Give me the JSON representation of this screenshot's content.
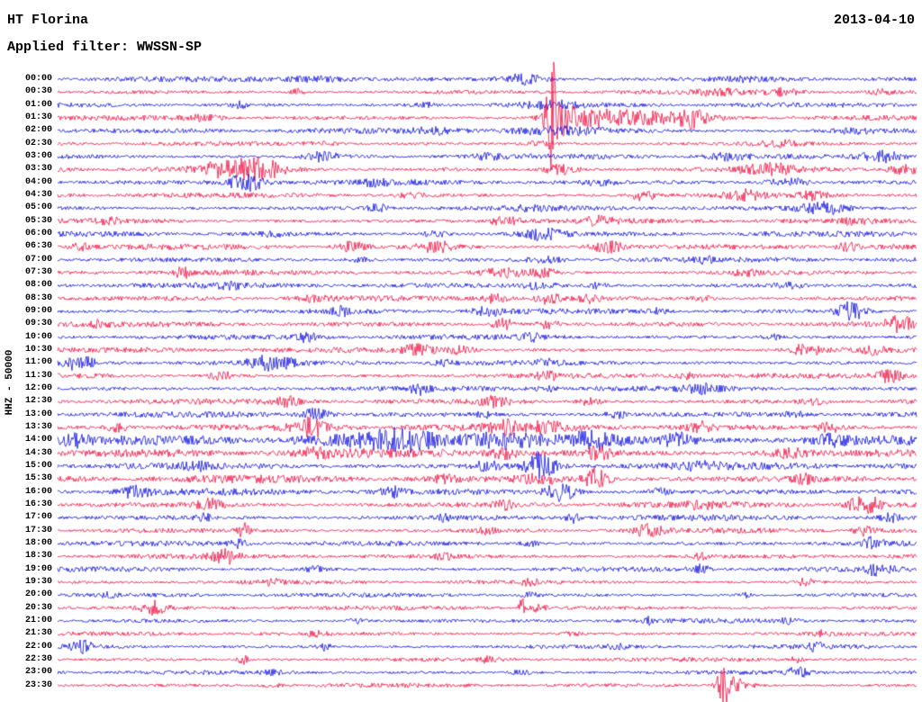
{
  "header": {
    "station": "HT Florina",
    "date": "2013-04-10",
    "filter": "Applied filter: WWSSN-SP"
  },
  "axis": {
    "label": "HHZ - 50000"
  },
  "chart_data": {
    "type": "line",
    "subtype": "helicorder-seismogram",
    "station": "HT Florina",
    "channel": "HHZ",
    "scale": 50000,
    "date": "2013-04-10",
    "filter": "WWSSN-SP",
    "row_interval_minutes": 30,
    "trace_color_cycle": [
      "blue",
      "red"
    ],
    "colors": {
      "b": "#0000e0",
      "r": "#f20038"
    },
    "notable_events": [
      {
        "time": "01:30",
        "pos": 0.574,
        "description": "large red spike with coda"
      },
      {
        "time": "20:30",
        "pos": 0.541,
        "description": "narrow tall spike"
      },
      {
        "time": "23:30",
        "pos": 0.775,
        "description": "large spike at bottom"
      }
    ],
    "rows": [
      {
        "t": "00:00",
        "c": "b",
        "n": 1.8,
        "b": [
          [
            0.545,
            6,
            25
          ],
          [
            0.3,
            2.5,
            40
          ],
          [
            0.8,
            2,
            30
          ]
        ]
      },
      {
        "t": "00:30",
        "c": "r",
        "n": 1.6,
        "b": [
          [
            0.279,
            6,
            6
          ],
          [
            0.77,
            3,
            25
          ],
          [
            0.845,
            3.5,
            20
          ],
          [
            0.96,
            2.5,
            15
          ]
        ]
      },
      {
        "t": "01:00",
        "c": "b",
        "n": 1.7,
        "b": [
          [
            0.211,
            4,
            8
          ],
          [
            0.574,
            4,
            30
          ],
          [
            0.43,
            2.5,
            20
          ]
        ]
      },
      {
        "t": "01:30",
        "c": "r",
        "n": 1.7,
        "b": [
          [
            0.574,
            45,
            5,
            1.9
          ],
          [
            0.585,
            16,
            16
          ],
          [
            0.625,
            8,
            45
          ],
          [
            0.7,
            5,
            60
          ],
          [
            0.74,
            8,
            14
          ],
          [
            0.17,
            3,
            20
          ]
        ]
      },
      {
        "t": "02:00",
        "c": "b",
        "n": 1.9,
        "b": [
          [
            0.58,
            4,
            60
          ],
          [
            0.44,
            3,
            20
          ],
          [
            0.93,
            2.5,
            25
          ]
        ]
      },
      {
        "t": "02:30",
        "c": "r",
        "n": 1.5,
        "b": [
          [
            0.84,
            3,
            20
          ],
          [
            0.56,
            2.5,
            20
          ],
          [
            0.31,
            2,
            15
          ]
        ]
      },
      {
        "t": "03:00",
        "c": "b",
        "n": 1.9,
        "b": [
          [
            0.31,
            5.5,
            18
          ],
          [
            0.96,
            6,
            22
          ],
          [
            0.78,
            3,
            20
          ],
          [
            0.5,
            2.5,
            15
          ]
        ]
      },
      {
        "t": "03:30",
        "c": "r",
        "n": 2.0,
        "b": [
          [
            0.205,
            9,
            35
          ],
          [
            0.242,
            7,
            20
          ],
          [
            0.585,
            5,
            18
          ],
          [
            0.829,
            5.5,
            28
          ],
          [
            0.985,
            5,
            15
          ]
        ]
      },
      {
        "t": "04:00",
        "c": "b",
        "n": 1.9,
        "b": [
          [
            0.221,
            9,
            22
          ],
          [
            0.37,
            3,
            15
          ],
          [
            0.85,
            5,
            22
          ],
          [
            0.63,
            2.5,
            15
          ]
        ]
      },
      {
        "t": "04:30",
        "c": "r",
        "n": 1.8,
        "b": [
          [
            0.682,
            6,
            14
          ],
          [
            0.8,
            5,
            20
          ],
          [
            0.41,
            3,
            15
          ],
          [
            0.88,
            4,
            15
          ]
        ]
      },
      {
        "t": "05:00",
        "c": "b",
        "n": 1.8,
        "b": [
          [
            0.373,
            4,
            12
          ],
          [
            0.892,
            6,
            25
          ],
          [
            0.55,
            2.5,
            15
          ]
        ]
      },
      {
        "t": "05:30",
        "c": "r",
        "n": 1.9,
        "b": [
          [
            0.63,
            5,
            15
          ],
          [
            0.52,
            4,
            20
          ],
          [
            0.93,
            3,
            15
          ],
          [
            0.06,
            3,
            12
          ]
        ]
      },
      {
        "t": "06:00",
        "c": "b",
        "n": 1.9,
        "b": [
          [
            0.562,
            6,
            25
          ],
          [
            0.44,
            3,
            15
          ],
          [
            0.25,
            2.5,
            15
          ]
        ]
      },
      {
        "t": "06:30",
        "c": "r",
        "n": 2.0,
        "b": [
          [
            0.025,
            4,
            12
          ],
          [
            0.342,
            5,
            15
          ],
          [
            0.441,
            6,
            20
          ],
          [
            0.64,
            6,
            18
          ],
          [
            0.92,
            4,
            15
          ]
        ]
      },
      {
        "t": "07:00",
        "c": "b",
        "n": 1.8,
        "b": [
          [
            0.57,
            3,
            20
          ],
          [
            0.35,
            2.5,
            15
          ],
          [
            0.75,
            2.5,
            15
          ]
        ]
      },
      {
        "t": "07:30",
        "c": "r",
        "n": 1.8,
        "b": [
          [
            0.146,
            6,
            8
          ],
          [
            0.52,
            5,
            22
          ],
          [
            0.565,
            5,
            15
          ],
          [
            0.8,
            3,
            15
          ]
        ]
      },
      {
        "t": "08:00",
        "c": "b",
        "n": 1.9,
        "b": [
          [
            0.562,
            4,
            18
          ],
          [
            0.63,
            3,
            12
          ],
          [
            0.2,
            2.5,
            15
          ],
          [
            0.85,
            2.5,
            15
          ]
        ]
      },
      {
        "t": "08:30",
        "c": "r",
        "n": 1.9,
        "b": [
          [
            0.51,
            5,
            14
          ],
          [
            0.572,
            6,
            14
          ],
          [
            0.619,
            5,
            12
          ],
          [
            0.75,
            3,
            12
          ],
          [
            0.3,
            3,
            12
          ]
        ]
      },
      {
        "t": "09:00",
        "c": "b",
        "n": 1.9,
        "b": [
          [
            0.331,
            4,
            12
          ],
          [
            0.5,
            5,
            14
          ],
          [
            0.923,
            10,
            16
          ],
          [
            0.7,
            3,
            12
          ]
        ]
      },
      {
        "t": "09:30",
        "c": "r",
        "n": 1.9,
        "b": [
          [
            0.52,
            6,
            14
          ],
          [
            0.572,
            5,
            12
          ],
          [
            0.981,
            8,
            16
          ],
          [
            0.05,
            3,
            10
          ]
        ]
      },
      {
        "t": "10:00",
        "c": "b",
        "n": 1.9,
        "b": [
          [
            0.289,
            4,
            12
          ],
          [
            0.55,
            4,
            12
          ],
          [
            0.83,
            3,
            12
          ]
        ]
      },
      {
        "t": "10:30",
        "c": "r",
        "n": 1.9,
        "b": [
          [
            0.42,
            6,
            18
          ],
          [
            0.47,
            5,
            14
          ],
          [
            0.871,
            6,
            16
          ],
          [
            0.95,
            4,
            12
          ]
        ]
      },
      {
        "t": "11:00",
        "c": "b",
        "n": 1.9,
        "b": [
          [
            0.025,
            8,
            18
          ],
          [
            0.247,
            7,
            25
          ],
          [
            0.57,
            3,
            15
          ],
          [
            0.45,
            2.5,
            12
          ]
        ]
      },
      {
        "t": "11:30",
        "c": "r",
        "n": 1.9,
        "b": [
          [
            0.19,
            5,
            12
          ],
          [
            0.57,
            4,
            12
          ],
          [
            0.73,
            4,
            12
          ],
          [
            0.971,
            7,
            16
          ]
        ]
      },
      {
        "t": "12:00",
        "c": "b",
        "n": 2.0,
        "b": [
          [
            0.42,
            5,
            10
          ],
          [
            0.75,
            4,
            18
          ],
          [
            0.57,
            3,
            12
          ]
        ]
      },
      {
        "t": "12:30",
        "c": "r",
        "n": 2.0,
        "b": [
          [
            0.268,
            5,
            12
          ],
          [
            0.51,
            5,
            18
          ],
          [
            0.62,
            4,
            12
          ],
          [
            0.88,
            3,
            12
          ]
        ]
      },
      {
        "t": "13:00",
        "c": "b",
        "n": 2.1,
        "b": [
          [
            0.3,
            6,
            16
          ],
          [
            0.65,
            4,
            12
          ],
          [
            0.5,
            3,
            12
          ],
          [
            0.86,
            3,
            12
          ]
        ]
      },
      {
        "t": "13:30",
        "c": "r",
        "n": 2.8,
        "b": [
          [
            0.295,
            9,
            18
          ],
          [
            0.52,
            6,
            14
          ],
          [
            0.57,
            6,
            14
          ],
          [
            0.75,
            5,
            14
          ],
          [
            0.9,
            5,
            14
          ],
          [
            0.07,
            4,
            12
          ]
        ]
      },
      {
        "t": "14:00",
        "c": "b",
        "n": 4.5,
        "b": [
          [
            0.02,
            6,
            14
          ],
          [
            0.4,
            8,
            40
          ],
          [
            0.52,
            8,
            40
          ],
          [
            0.62,
            7,
            30
          ],
          [
            0.72,
            7,
            16
          ],
          [
            0.9,
            5,
            20
          ]
        ]
      },
      {
        "t": "14:30",
        "c": "r",
        "n": 3.2,
        "b": [
          [
            0.52,
            6,
            16
          ],
          [
            0.63,
            6,
            14
          ],
          [
            0.85,
            6,
            22
          ],
          [
            0.3,
            4,
            14
          ]
        ]
      },
      {
        "t": "15:00",
        "c": "b",
        "n": 2.8,
        "b": [
          [
            0.562,
            14,
            16
          ],
          [
            0.5,
            5,
            14
          ],
          [
            0.75,
            4,
            14
          ],
          [
            0.16,
            4,
            12
          ]
        ]
      },
      {
        "t": "15:30",
        "c": "r",
        "n": 2.8,
        "b": [
          [
            0.628,
            12,
            14
          ],
          [
            0.56,
            6,
            22
          ],
          [
            0.45,
            4,
            12
          ],
          [
            0.87,
            4,
            12
          ]
        ]
      },
      {
        "t": "16:00",
        "c": "b",
        "n": 2.4,
        "b": [
          [
            0.09,
            6,
            16
          ],
          [
            0.389,
            5,
            12
          ],
          [
            0.585,
            11,
            16
          ],
          [
            0.7,
            4,
            12
          ]
        ]
      },
      {
        "t": "16:30",
        "c": "r",
        "n": 2.2,
        "b": [
          [
            0.179,
            6,
            16
          ],
          [
            0.52,
            4,
            12
          ],
          [
            0.939,
            13,
            16
          ],
          [
            0.75,
            4,
            12
          ]
        ]
      },
      {
        "t": "17:00",
        "c": "b",
        "n": 2.0,
        "b": [
          [
            0.599,
            8,
            8
          ],
          [
            0.17,
            4,
            10
          ],
          [
            0.45,
            3,
            10
          ],
          [
            0.97,
            4,
            10
          ]
        ]
      },
      {
        "t": "17:30",
        "c": "r",
        "n": 1.9,
        "b": [
          [
            0.216,
            8,
            8
          ],
          [
            0.688,
            7,
            14
          ],
          [
            0.94,
            5,
            12
          ],
          [
            0.5,
            3,
            10
          ]
        ]
      },
      {
        "t": "18:00",
        "c": "b",
        "n": 1.8,
        "b": [
          [
            0.21,
            4,
            10
          ],
          [
            0.95,
            6,
            12
          ],
          [
            0.55,
            3,
            10
          ]
        ]
      },
      {
        "t": "18:30",
        "c": "r",
        "n": 1.8,
        "b": [
          [
            0.195,
            7,
            14
          ],
          [
            0.45,
            3,
            10
          ],
          [
            0.75,
            3,
            10
          ]
        ]
      },
      {
        "t": "19:00",
        "c": "b",
        "n": 1.8,
        "b": [
          [
            0.75,
            5,
            8
          ],
          [
            0.955,
            6,
            14
          ],
          [
            0.3,
            3,
            10
          ]
        ]
      },
      {
        "t": "19:30",
        "c": "r",
        "n": 1.5,
        "b": [
          [
            0.55,
            3,
            10
          ],
          [
            0.871,
            5,
            8
          ],
          [
            0.25,
            2.5,
            10
          ]
        ]
      },
      {
        "t": "20:00",
        "c": "b",
        "n": 1.5,
        "b": [
          [
            0.059,
            3,
            8
          ],
          [
            0.55,
            3,
            10
          ],
          [
            0.8,
            2.5,
            10
          ]
        ]
      },
      {
        "t": "20:30",
        "c": "r",
        "n": 1.5,
        "b": [
          [
            0.114,
            7,
            16
          ],
          [
            0.541,
            16,
            3,
            1.15
          ],
          [
            0.56,
            4,
            10
          ]
        ]
      },
      {
        "t": "21:00",
        "c": "b",
        "n": 1.5,
        "b": [
          [
            0.69,
            4,
            6
          ],
          [
            0.35,
            2.5,
            10
          ],
          [
            0.85,
            2.5,
            10
          ]
        ]
      },
      {
        "t": "21:30",
        "c": "r",
        "n": 1.4,
        "b": [
          [
            0.3,
            2.5,
            10
          ],
          [
            0.89,
            3,
            8
          ],
          [
            0.6,
            2.5,
            10
          ]
        ]
      },
      {
        "t": "22:00",
        "c": "b",
        "n": 1.5,
        "b": [
          [
            0.029,
            6,
            12
          ],
          [
            0.31,
            4,
            8
          ],
          [
            0.882,
            4,
            10
          ],
          [
            0.65,
            2.5,
            10
          ]
        ]
      },
      {
        "t": "22:30",
        "c": "r",
        "n": 1.4,
        "b": [
          [
            0.216,
            5,
            6
          ],
          [
            0.86,
            3,
            8
          ],
          [
            0.5,
            2.5,
            10
          ]
        ]
      },
      {
        "t": "23:00",
        "c": "b",
        "n": 1.5,
        "b": [
          [
            0.54,
            3,
            10
          ],
          [
            0.861,
            5,
            12
          ],
          [
            0.25,
            2.5,
            10
          ]
        ]
      },
      {
        "t": "23:30",
        "c": "r",
        "n": 1.4,
        "b": [
          [
            0.775,
            26,
            6
          ],
          [
            0.79,
            8,
            16
          ],
          [
            0.25,
            2.5,
            10
          ]
        ]
      }
    ]
  }
}
